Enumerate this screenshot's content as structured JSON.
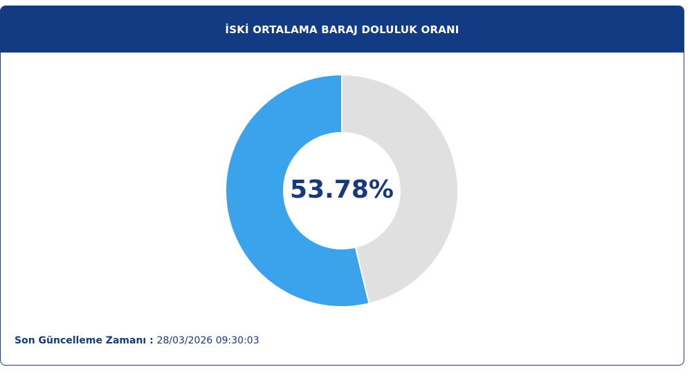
{
  "header": {
    "title": "İSKİ ORTALAMA BARAJ DOLULUK ORANI"
  },
  "chart_data": {
    "type": "pie",
    "donut": true,
    "values": [
      53.78,
      46.22
    ],
    "colors": [
      "#3aa3ec",
      "#e0e0e0"
    ],
    "center_label": "53.78%"
  },
  "footer": {
    "label": "Son Güncelleme Zamanı",
    "separator": " : ",
    "timestamp": "28/03/2026 09:30:03"
  }
}
